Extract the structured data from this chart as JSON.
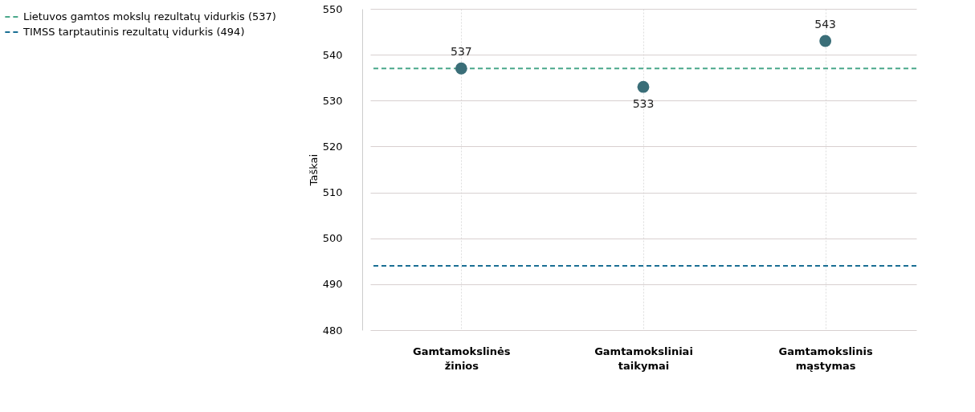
{
  "chart_data": {
    "type": "scatter",
    "ylabel": "Taškai",
    "categories": [
      "Gamtamokslinės žinios",
      "Gamtamoksliniai taikymai",
      "Gamtamokslinis mąstymas"
    ],
    "series": [
      {
        "color": "#3a6e78",
        "values": [
          537,
          533,
          543
        ]
      }
    ],
    "data_labels": true,
    "marker": "circle",
    "ylim": [
      480,
      550
    ],
    "yticks": [
      480,
      490,
      500,
      510,
      520,
      530,
      540,
      550
    ],
    "ref_lines": [
      {
        "axis": "y",
        "value": 537,
        "label": "Lietuvos gamtos mokslų rezultatų vidurkis (537)",
        "color": "#4aa88a",
        "line_style": "dashed"
      },
      {
        "axis": "y",
        "value": 494,
        "label": "TIMSS tarptautinis rezultatų vidurkis (494)",
        "color": "#1a6f94",
        "line_style": "dashed"
      }
    ],
    "grid": true,
    "legend": "top left"
  }
}
